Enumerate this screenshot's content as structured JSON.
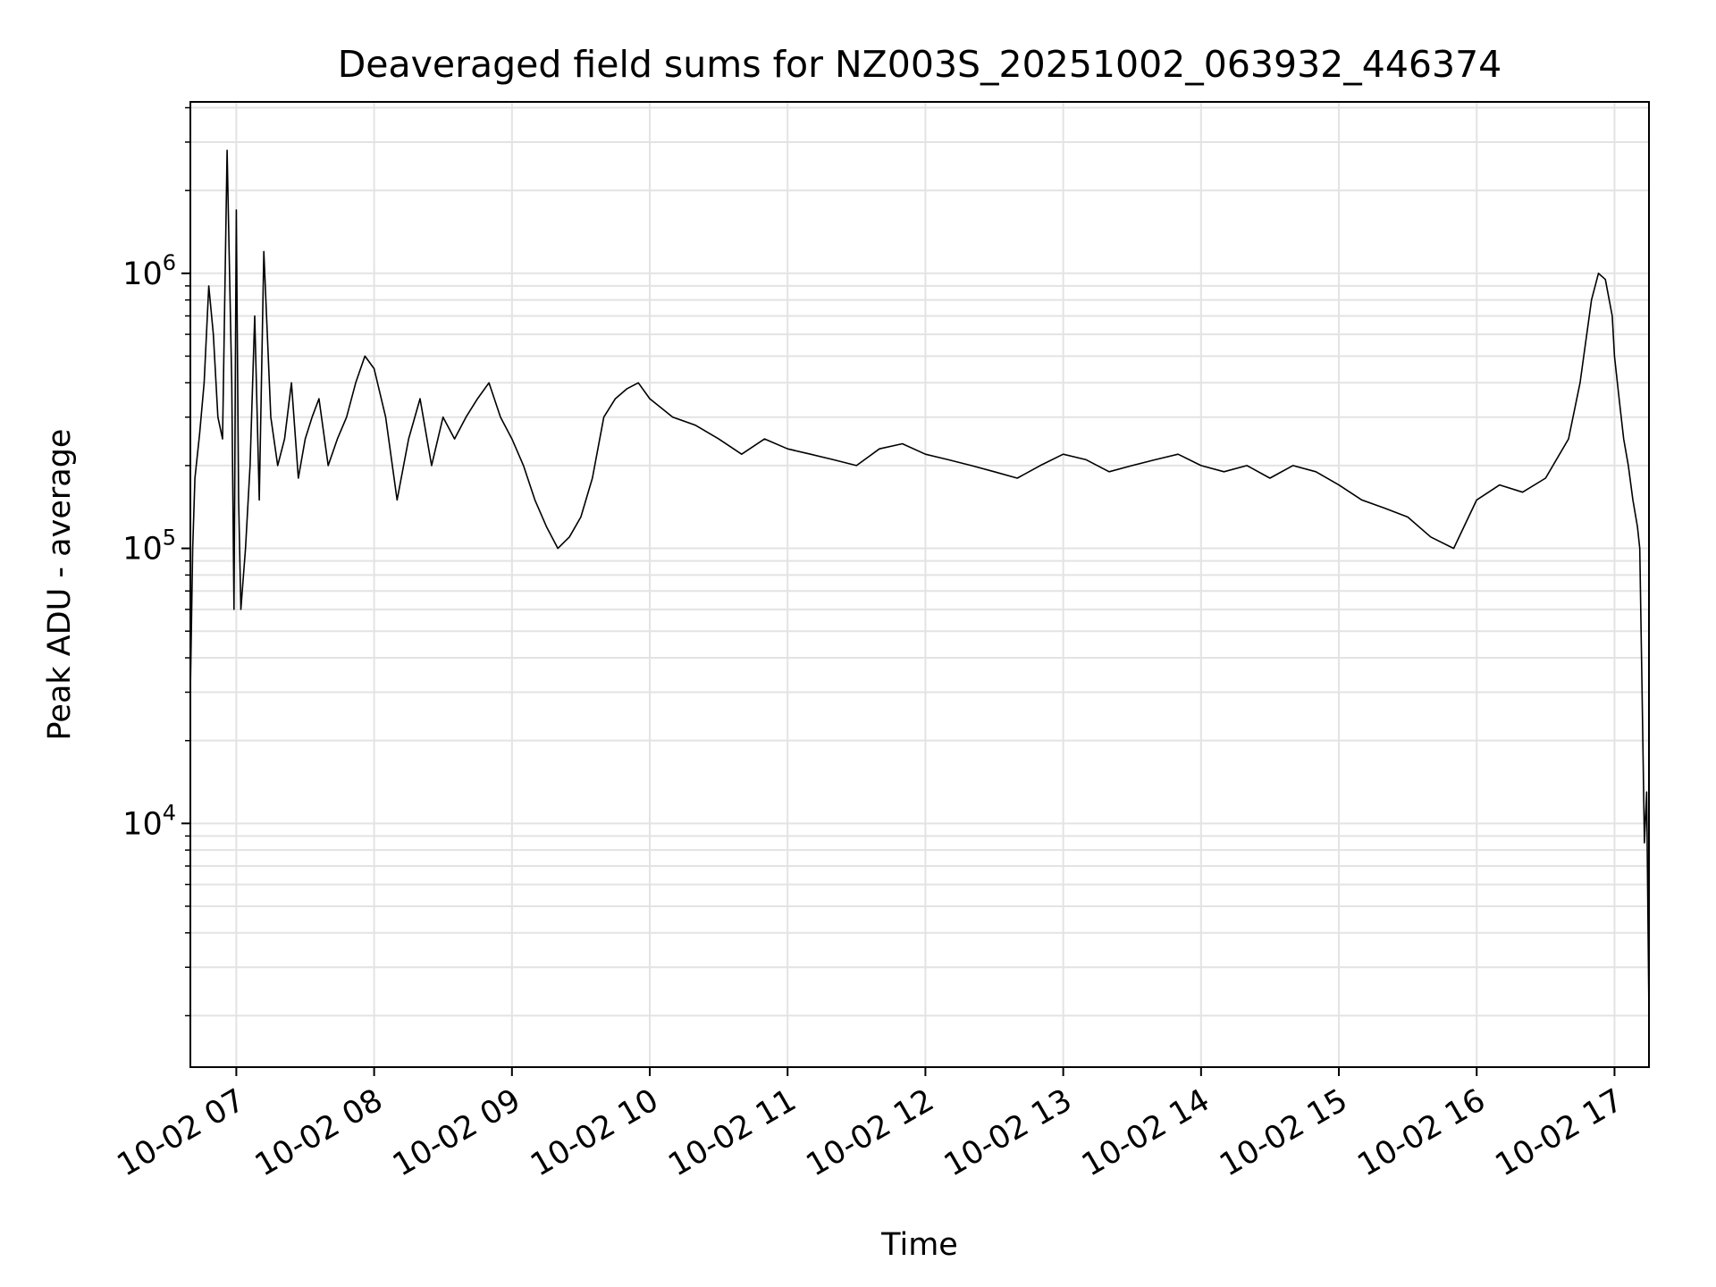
{
  "chart_data": {
    "type": "line",
    "title": "Deaveraged field sums for NZ003S_20251002_063932_446374",
    "xlabel": "Time",
    "ylabel": "Peak ADU - average",
    "x_scale": "time",
    "y_scale": "log",
    "xlim": [
      "10-02 06:40",
      "10-02 17:15"
    ],
    "ylim": [
      1300,
      4200000
    ],
    "grid": true,
    "grid_color": "#e3e3e3",
    "line_color": "#000000",
    "x_ticks": [
      {
        "t": "10-02 07:00",
        "label": "10-02 07"
      },
      {
        "t": "10-02 08:00",
        "label": "10-02 08"
      },
      {
        "t": "10-02 09:00",
        "label": "10-02 09"
      },
      {
        "t": "10-02 10:00",
        "label": "10-02 10"
      },
      {
        "t": "10-02 11:00",
        "label": "10-02 11"
      },
      {
        "t": "10-02 12:00",
        "label": "10-02 12"
      },
      {
        "t": "10-02 13:00",
        "label": "10-02 13"
      },
      {
        "t": "10-02 14:00",
        "label": "10-02 14"
      },
      {
        "t": "10-02 15:00",
        "label": "10-02 15"
      },
      {
        "t": "10-02 16:00",
        "label": "10-02 16"
      },
      {
        "t": "10-02 17:00",
        "label": "10-02 17"
      }
    ],
    "y_ticks": [
      {
        "v": 10000,
        "base": "10",
        "exp": "4"
      },
      {
        "v": 100000,
        "base": "10",
        "exp": "5"
      },
      {
        "v": 1000000,
        "base": "10",
        "exp": "6"
      }
    ],
    "series": [
      {
        "x": [
          "10-02 06:40",
          "10-02 06:41",
          "10-02 06:42",
          "10-02 06:44",
          "10-02 06:46",
          "10-02 06:48",
          "10-02 06:50",
          "10-02 06:52",
          "10-02 06:54",
          "10-02 06:56",
          "10-02 06:58",
          "10-02 06:59",
          "10-02 07:00",
          "10-02 07:01",
          "10-02 07:02",
          "10-02 07:04",
          "10-02 07:06",
          "10-02 07:08",
          "10-02 07:10",
          "10-02 07:12",
          "10-02 07:15",
          "10-02 07:18",
          "10-02 07:21",
          "10-02 07:24",
          "10-02 07:27",
          "10-02 07:30",
          "10-02 07:33",
          "10-02 07:36",
          "10-02 07:40",
          "10-02 07:44",
          "10-02 07:48",
          "10-02 07:52",
          "10-02 07:56",
          "10-02 08:00",
          "10-02 08:05",
          "10-02 08:10",
          "10-02 08:15",
          "10-02 08:20",
          "10-02 08:25",
          "10-02 08:30",
          "10-02 08:35",
          "10-02 08:40",
          "10-02 08:45",
          "10-02 08:50",
          "10-02 08:55",
          "10-02 09:00",
          "10-02 09:05",
          "10-02 09:10",
          "10-02 09:15",
          "10-02 09:20",
          "10-02 09:25",
          "10-02 09:30",
          "10-02 09:35",
          "10-02 09:40",
          "10-02 09:45",
          "10-02 09:50",
          "10-02 09:55",
          "10-02 10:00",
          "10-02 10:10",
          "10-02 10:20",
          "10-02 10:30",
          "10-02 10:40",
          "10-02 10:50",
          "10-02 11:00",
          "10-02 11:10",
          "10-02 11:20",
          "10-02 11:30",
          "10-02 11:40",
          "10-02 11:50",
          "10-02 12:00",
          "10-02 12:10",
          "10-02 12:20",
          "10-02 12:30",
          "10-02 12:40",
          "10-02 12:50",
          "10-02 13:00",
          "10-02 13:10",
          "10-02 13:20",
          "10-02 13:30",
          "10-02 13:40",
          "10-02 13:50",
          "10-02 14:00",
          "10-02 14:10",
          "10-02 14:20",
          "10-02 14:30",
          "10-02 14:40",
          "10-02 14:50",
          "10-02 15:00",
          "10-02 15:10",
          "10-02 15:20",
          "10-02 15:30",
          "10-02 15:40",
          "10-02 15:50",
          "10-02 16:00",
          "10-02 16:10",
          "10-02 16:20",
          "10-02 16:30",
          "10-02 16:40",
          "10-02 16:45",
          "10-02 16:50",
          "10-02 16:53",
          "10-02 16:56",
          "10-02 16:59",
          "10-02 17:00",
          "10-02 17:02",
          "10-02 17:04",
          "10-02 17:06",
          "10-02 17:08",
          "10-02 17:10",
          "10-02 17:11",
          "10-02 17:12",
          "10-02 17:13",
          "10-02 17:14",
          "10-02 17:15"
        ],
        "y": [
          30000,
          100000,
          180000,
          260000,
          400000,
          900000,
          600000,
          300000,
          250000,
          2800000,
          400000,
          60000,
          1700000,
          150000,
          60000,
          100000,
          200000,
          700000,
          150000,
          1200000,
          300000,
          200000,
          250000,
          400000,
          180000,
          250000,
          300000,
          350000,
          200000,
          250000,
          300000,
          400000,
          500000,
          450000,
          300000,
          150000,
          250000,
          350000,
          200000,
          300000,
          250000,
          300000,
          350000,
          400000,
          300000,
          250000,
          200000,
          150000,
          120000,
          100000,
          110000,
          130000,
          180000,
          300000,
          350000,
          380000,
          400000,
          350000,
          300000,
          280000,
          250000,
          220000,
          250000,
          230000,
          220000,
          210000,
          200000,
          230000,
          240000,
          220000,
          210000,
          200000,
          190000,
          180000,
          200000,
          220000,
          210000,
          190000,
          200000,
          210000,
          220000,
          200000,
          190000,
          200000,
          180000,
          200000,
          190000,
          170000,
          150000,
          140000,
          130000,
          110000,
          100000,
          150000,
          170000,
          160000,
          180000,
          250000,
          400000,
          800000,
          1000000,
          950000,
          700000,
          500000,
          350000,
          250000,
          200000,
          150000,
          120000,
          100000,
          30000,
          8500,
          13000,
          2000
        ]
      }
    ]
  }
}
